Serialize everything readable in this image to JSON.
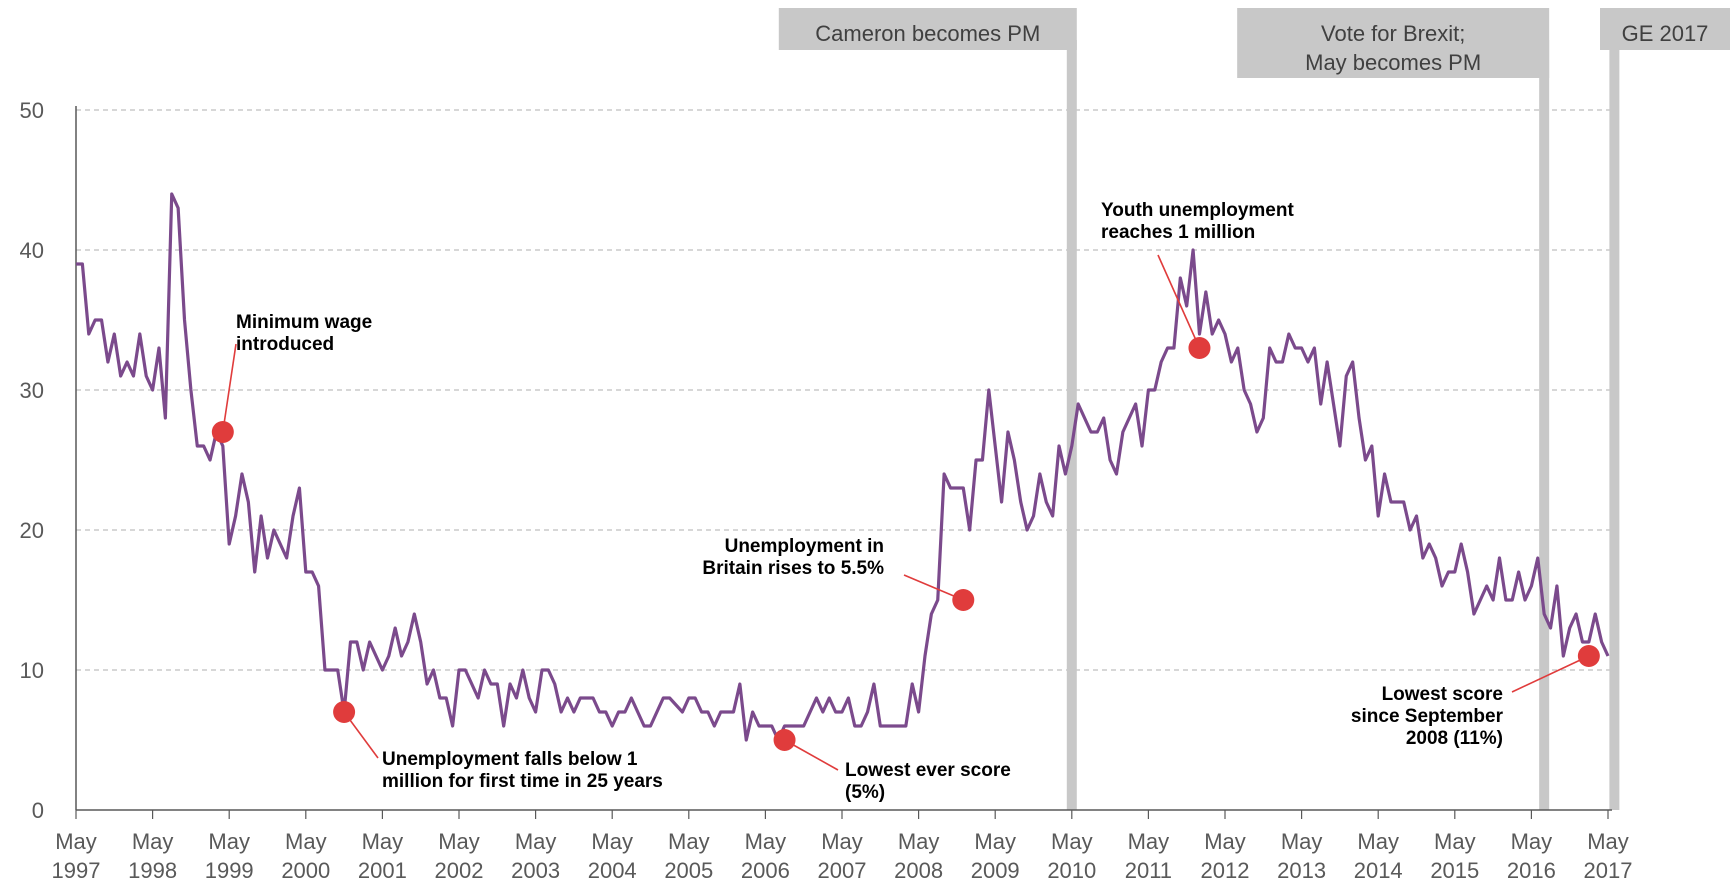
{
  "chart_data": {
    "type": "line",
    "title": "",
    "xlabel": "",
    "ylabel": "",
    "ylim": [
      0,
      50
    ],
    "yticks": [
      0,
      10,
      20,
      30,
      40,
      50
    ],
    "xticks": [
      "May 1997",
      "May 1998",
      "May 1999",
      "May 2000",
      "May 2001",
      "May 2002",
      "May 2003",
      "May 2004",
      "May 2005",
      "May 2006",
      "May 2007",
      "May 2008",
      "May 2009",
      "May 2010",
      "May 2011",
      "May 2012",
      "May 2013",
      "May 2014",
      "May 2015",
      "May 2016",
      "May 2017"
    ],
    "grid": "horizontal dashed",
    "series": [
      {
        "color": "#7B4A8C",
        "start": "1997-05",
        "frequency": "monthly",
        "values": [
          39,
          39,
          34,
          35,
          35,
          32,
          34,
          31,
          32,
          31,
          34,
          31,
          30,
          33,
          28,
          44,
          43,
          35,
          30,
          26,
          26,
          25,
          27,
          26,
          19,
          21,
          24,
          22,
          17,
          21,
          18,
          20,
          19,
          18,
          21,
          23,
          17,
          17,
          16,
          10,
          10,
          10,
          7,
          12,
          12,
          10,
          12,
          11,
          10,
          11,
          13,
          11,
          12,
          14,
          12,
          9,
          10,
          8,
          8,
          6,
          10,
          10,
          9,
          8,
          10,
          9,
          9,
          6,
          9,
          8,
          10,
          8,
          7,
          10,
          10,
          9,
          7,
          8,
          7,
          8,
          8,
          8,
          7,
          7,
          6,
          7,
          7,
          8,
          7,
          6,
          6,
          7,
          8,
          8,
          7.5,
          7,
          8,
          8,
          7,
          7,
          6,
          7,
          7,
          7,
          9,
          5,
          7,
          6,
          6,
          6,
          5,
          6,
          6,
          6,
          6,
          7,
          8,
          7,
          8,
          7,
          7,
          8,
          6,
          6,
          7,
          9,
          6,
          6,
          6,
          6,
          6,
          9,
          7,
          11,
          14,
          15,
          24,
          23,
          23,
          23,
          20,
          25,
          25,
          30,
          26,
          22,
          27,
          25,
          22,
          20,
          21,
          24,
          22,
          21,
          26,
          24,
          26,
          29,
          28,
          27,
          27,
          28,
          25,
          24,
          27,
          28,
          29,
          26,
          30,
          30,
          32,
          33,
          33,
          38,
          36,
          40,
          34,
          37,
          34,
          35,
          34,
          32,
          33,
          30,
          29,
          27,
          28,
          33,
          32,
          32,
          34,
          33,
          33,
          32,
          33,
          29,
          32,
          29,
          26,
          31,
          32,
          28,
          25,
          26,
          21,
          24,
          22,
          22,
          22,
          20,
          21,
          18,
          19,
          18,
          16,
          17,
          17,
          19,
          17,
          14,
          15,
          16,
          15,
          18,
          15,
          15,
          17,
          15,
          16,
          18,
          14,
          13,
          16,
          11,
          13,
          14,
          12,
          12,
          14,
          12,
          11
        ]
      }
    ],
    "annotations": [
      {
        "date": "1999-04",
        "value": 27,
        "color": "#E03C3C",
        "lines": [
          "Minimum wage",
          "introduced"
        ]
      },
      {
        "date": "2000-11",
        "value": 7,
        "color": "#E03C3C",
        "lines": [
          "Unemployment falls below 1",
          "million for first time in 25 years"
        ]
      },
      {
        "date": "2006-08",
        "value": 5,
        "color": "#E03C3C",
        "lines": [
          "Lowest ever score",
          "(5%)"
        ]
      },
      {
        "date": "2008-12",
        "value": 15,
        "color": "#E03C3C",
        "lines": [
          "Unemployment in",
          "Britain rises to 5.5%"
        ]
      },
      {
        "date": "2012-01",
        "value": 33,
        "color": "#E03C3C",
        "lines": [
          "Youth unemployment",
          "reaches 1 million"
        ]
      },
      {
        "date": "2017-02",
        "value": 11,
        "color": "#E03C3C",
        "lines": [
          "Lowest score",
          "since September",
          "2008 (11%)"
        ]
      }
    ],
    "events": [
      {
        "date": "2010-05",
        "lines": [
          "Cameron becomes PM"
        ]
      },
      {
        "date": "2016-07",
        "lines": [
          "Vote for Brexit;",
          "May becomes PM"
        ]
      },
      {
        "date": "2017-06",
        "lines": [
          "GE 2017"
        ]
      }
    ],
    "colors": {
      "line": "#7B4A8C",
      "marker": "#E03C3C",
      "event_bar": "#C8C8C8",
      "grid": "#BFBFBF",
      "axis": "#595959"
    }
  }
}
